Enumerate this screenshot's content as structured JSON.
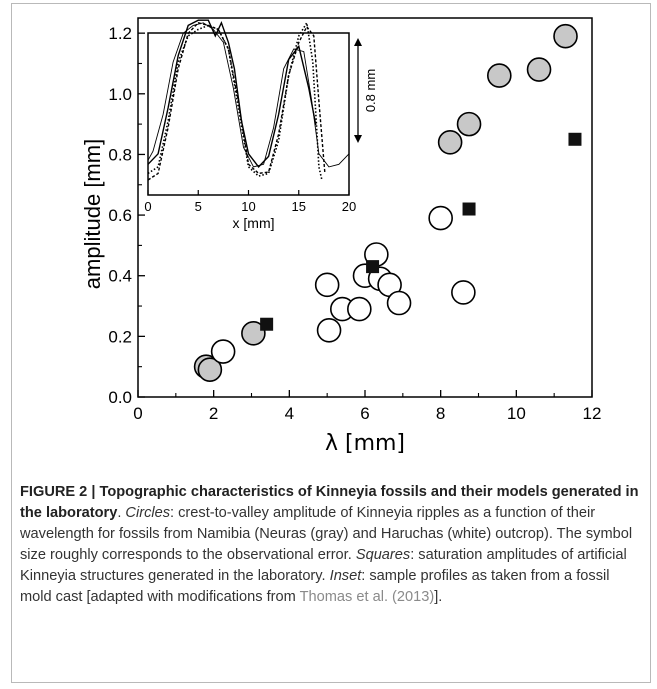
{
  "chart_data": {
    "type": "scatter",
    "xlabel": "λ [mm]",
    "ylabel": "amplitude [mm]",
    "xlim": [
      0,
      12
    ],
    "ylim": [
      0,
      1.25
    ],
    "xticks": [
      "0",
      "2",
      "4",
      "6",
      "8",
      "10",
      "12"
    ],
    "yticks": [
      "0.0",
      "0.2",
      "0.4",
      "0.6",
      "0.8",
      "1.0",
      "1.2"
    ],
    "series": [
      {
        "marker": "gray-circle",
        "color": "#c8c8c8",
        "points": [
          [
            1.8,
            0.1
          ],
          [
            1.9,
            0.09
          ],
          [
            3.05,
            0.21
          ],
          [
            8.25,
            0.84
          ],
          [
            8.75,
            0.9
          ],
          [
            9.55,
            1.06
          ],
          [
            10.6,
            1.08
          ],
          [
            11.3,
            1.19
          ]
        ]
      },
      {
        "marker": "white-circle",
        "color": "#ffffff",
        "points": [
          [
            2.25,
            0.15
          ],
          [
            5.0,
            0.37
          ],
          [
            5.05,
            0.22
          ],
          [
            5.4,
            0.29
          ],
          [
            5.85,
            0.29
          ],
          [
            6.0,
            0.4
          ],
          [
            6.3,
            0.47
          ],
          [
            6.4,
            0.39
          ],
          [
            6.65,
            0.37
          ],
          [
            6.9,
            0.31
          ],
          [
            8.0,
            0.59
          ],
          [
            8.6,
            0.345
          ]
        ]
      },
      {
        "marker": "black-square",
        "color": "#111111",
        "points": [
          [
            3.4,
            0.24
          ],
          [
            6.2,
            0.43
          ],
          [
            8.75,
            0.62
          ],
          [
            11.55,
            0.85
          ]
        ]
      }
    ],
    "inset": {
      "type": "line",
      "xlabel": "x [mm]",
      "xlim": [
        0,
        20
      ],
      "xticks": [
        "0",
        "5",
        "10",
        "15",
        "20"
      ],
      "scale_label": "0.8 mm",
      "profiles": [
        {
          "style": "solid",
          "points": [
            [
              0,
              0.12
            ],
            [
              1,
              0.2
            ],
            [
              2,
              0.55
            ],
            [
              3,
              0.95
            ],
            [
              4,
              1.18
            ],
            [
              5,
              1.22
            ],
            [
              6,
              1.22
            ],
            [
              6.7,
              1.1
            ],
            [
              7.3,
              1.2
            ],
            [
              8,
              1.05
            ],
            [
              8.6,
              0.85
            ],
            [
              9.3,
              0.45
            ],
            [
              10,
              0.2
            ],
            [
              11,
              0.1
            ],
            [
              12,
              0.18
            ],
            [
              13,
              0.5
            ],
            [
              14,
              0.92
            ],
            [
              15,
              1.02
            ],
            [
              16,
              0.7
            ],
            [
              16.7,
              0.42
            ]
          ]
        },
        {
          "style": "dotted",
          "points": [
            [
              0,
              0.05
            ],
            [
              1,
              0.1
            ],
            [
              2,
              0.45
            ],
            [
              3,
              0.9
            ],
            [
              4,
              1.1
            ],
            [
              5,
              1.15
            ],
            [
              6,
              1.18
            ],
            [
              7,
              1.15
            ],
            [
              8,
              1.0
            ],
            [
              9,
              0.55
            ],
            [
              10,
              0.1
            ],
            [
              11,
              0.03
            ],
            [
              12,
              0.05
            ],
            [
              13,
              0.3
            ],
            [
              14,
              0.8
            ],
            [
              15,
              1.1
            ],
            [
              15.8,
              1.2
            ],
            [
              16.4,
              0.9
            ],
            [
              17,
              0.1
            ],
            [
              17.3,
              0.0
            ]
          ]
        },
        {
          "style": "dashed",
          "points": [
            [
              0,
              0.0
            ],
            [
              1,
              0.05
            ],
            [
              2,
              0.4
            ],
            [
              3,
              0.85
            ],
            [
              4,
              1.12
            ],
            [
              5,
              1.2
            ],
            [
              6,
              1.18
            ],
            [
              7,
              1.15
            ],
            [
              8,
              1.0
            ],
            [
              9,
              0.6
            ],
            [
              10,
              0.12
            ],
            [
              11,
              0.05
            ],
            [
              12,
              0.06
            ],
            [
              13,
              0.35
            ],
            [
              14,
              0.8
            ],
            [
              15,
              1.05
            ],
            [
              15.8,
              1.17
            ],
            [
              16.5,
              1.1
            ],
            [
              17,
              0.6
            ],
            [
              17.6,
              0.05
            ]
          ]
        },
        {
          "style": "thin",
          "points": [
            [
              0,
              0.15
            ],
            [
              0.5,
              0.22
            ],
            [
              1.5,
              0.5
            ],
            [
              2.5,
              0.9
            ],
            [
              3.5,
              1.12
            ],
            [
              4.5,
              1.18
            ],
            [
              5.5,
              1.2
            ],
            [
              6.5,
              1.15
            ],
            [
              7.5,
              1.05
            ],
            [
              8.5,
              0.7
            ],
            [
              9.5,
              0.25
            ],
            [
              10.5,
              0.1
            ],
            [
              11.5,
              0.12
            ],
            [
              12.5,
              0.4
            ],
            [
              13.5,
              0.85
            ],
            [
              14.5,
              1.0
            ],
            [
              15.5,
              0.98
            ],
            [
              16.3,
              0.6
            ],
            [
              17,
              0.2
            ],
            [
              18,
              0.1
            ],
            [
              19,
              0.12
            ],
            [
              20,
              0.2
            ]
          ]
        }
      ]
    }
  },
  "caption": {
    "bold": "FIGURE 2 | Topographic characteristics of Kinneyia fossils and their models generated in the laboratory",
    "circles_label": "Circles",
    "circles_text": ": crest-to-valley amplitude of Kinneyia ripples as a function of their wavelength for fossils from Namibia (Neuras (gray) and Haruchas (white) outcrop). The symbol size roughly corresponds to the observational error.",
    "squares_label": "Squares",
    "squares_text": ": saturation amplitudes of artificial Kinneyia structures generated in the laboratory.",
    "inset_label": "Inset",
    "inset_text": ": sample profiles as taken from a fossil mold cast [adapted with modifications from",
    "ref": "Thomas et al. (2013)",
    "end": "]."
  }
}
